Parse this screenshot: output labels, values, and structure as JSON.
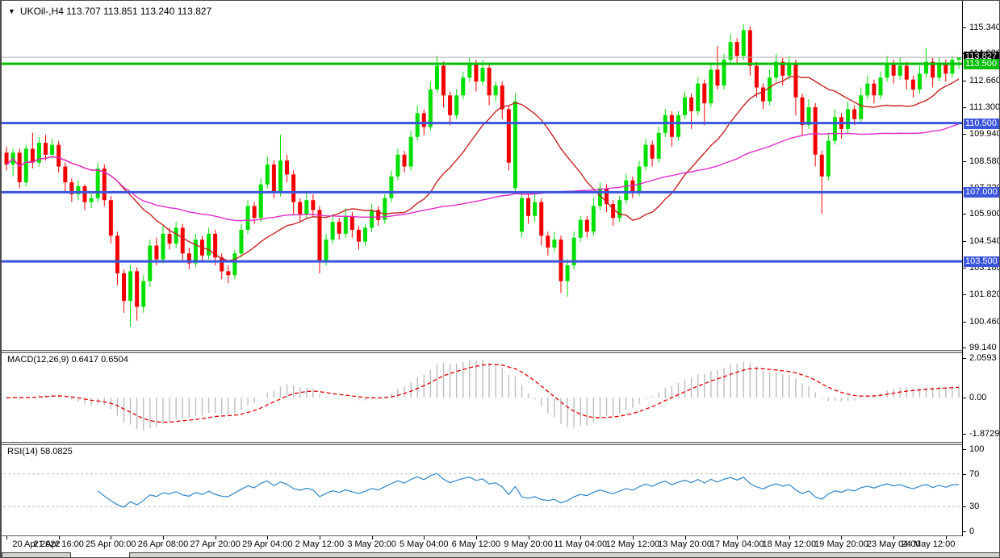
{
  "window": {
    "dropdown_icon": "▼",
    "title": "UKOil-,H4 113.707 113.851 113.240 113.827"
  },
  "chart_data": {
    "type": "candlestick",
    "symbol": "UKOil-",
    "timeframe": "H4",
    "current_bar": {
      "open": 113.707,
      "high": 113.851,
      "low": 113.24,
      "close": 113.827
    },
    "colors": {
      "bull": "#00DF00",
      "bear": "#F30000",
      "ma_fast": "#C62222",
      "ma_slow": "#E02CC8",
      "level_blue": "#3C55DD",
      "level_green": "#00BE00",
      "price_line": "#ABABAB",
      "badge_black": "#000000",
      "macd_hist": "#BDBDBD",
      "macd_signal": "#E00000",
      "rsi_line": "#2E86C8"
    },
    "price_axis_labels": [
      "115.340",
      "114.020",
      "112.660",
      "111.300",
      "109.940",
      "108.580",
      "107.220",
      "105.900",
      "104.540",
      "103.180",
      "101.820",
      "100.460",
      "99.140"
    ],
    "horizontal_levels": [
      {
        "value": 113.5,
        "label": "113.500",
        "color": "#00BE00"
      },
      {
        "value": 110.5,
        "label": "110.500",
        "color": "#3C55DD"
      },
      {
        "value": 107.0,
        "label": "107.000",
        "color": "#3C55DD"
      },
      {
        "value": 103.5,
        "label": "103.500",
        "color": "#3C55DD"
      }
    ],
    "price_line": {
      "value": 113.827,
      "label": "113.827"
    },
    "moving_averages": [
      {
        "name": "fast",
        "period": 18,
        "color": "#C62222"
      },
      {
        "name": "slow",
        "period": 65,
        "color": "#E02CC8"
      }
    ],
    "time_axis_labels": [
      "20 Apr 2022",
      "21 Apr 16:00",
      "25 Apr 00:00",
      "26 Apr 08:00",
      "27 Apr 20:00",
      "29 Apr 04:00",
      "2 May 12:00",
      "3 May 20:00",
      "5 May 04:00",
      "6 May 12:00",
      "9 May 20:00",
      "11 May 04:00",
      "12 May 12:00",
      "13 May 20:00",
      "17 May 04:00",
      "18 May 12:00",
      "19 May 20:00",
      "23 May 04:00",
      "24 May 12:00"
    ],
    "time_label_bar_step": 8,
    "candles": [
      [
        109.0,
        109.3,
        108.1,
        108.4
      ],
      [
        108.4,
        109.2,
        107.8,
        109.0
      ],
      [
        109.0,
        109.2,
        107.2,
        107.5
      ],
      [
        107.5,
        109.4,
        107.3,
        109.2
      ],
      [
        109.2,
        110.0,
        108.2,
        108.5
      ],
      [
        108.5,
        109.8,
        108.3,
        109.5
      ],
      [
        109.5,
        109.9,
        108.6,
        108.9
      ],
      [
        108.9,
        109.7,
        108.7,
        109.4
      ],
      [
        109.4,
        109.6,
        108.0,
        108.3
      ],
      [
        108.3,
        108.5,
        107.0,
        107.5
      ],
      [
        107.5,
        107.7,
        106.5,
        106.9
      ],
      [
        106.9,
        107.6,
        106.6,
        107.3
      ],
      [
        107.3,
        107.4,
        106.1,
        106.5
      ],
      [
        106.5,
        107.0,
        106.2,
        106.7
      ],
      [
        106.7,
        108.5,
        106.5,
        108.2
      ],
      [
        108.2,
        108.4,
        106.3,
        106.6
      ],
      [
        106.6,
        106.8,
        104.4,
        104.8
      ],
      [
        104.8,
        105.0,
        102.3,
        102.9
      ],
      [
        102.9,
        103.1,
        100.9,
        101.5
      ],
      [
        101.5,
        103.3,
        100.2,
        103.0
      ],
      [
        103.0,
        103.2,
        100.5,
        101.2
      ],
      [
        101.2,
        102.8,
        100.9,
        102.5
      ],
      [
        102.5,
        104.6,
        102.2,
        104.3
      ],
      [
        104.3,
        104.7,
        103.3,
        103.6
      ],
      [
        103.6,
        105.3,
        103.4,
        104.9
      ],
      [
        104.9,
        105.2,
        104.1,
        104.4
      ],
      [
        104.4,
        105.5,
        104.2,
        105.2
      ],
      [
        105.2,
        105.4,
        103.5,
        103.9
      ],
      [
        103.9,
        104.2,
        103.1,
        103.4
      ],
      [
        103.4,
        104.9,
        103.2,
        104.6
      ],
      [
        104.6,
        104.8,
        103.5,
        103.8
      ],
      [
        103.8,
        105.2,
        103.6,
        104.9
      ],
      [
        104.9,
        105.1,
        103.3,
        103.7
      ],
      [
        103.7,
        103.9,
        102.6,
        103.0
      ],
      [
        103.0,
        103.3,
        102.4,
        102.8
      ],
      [
        102.8,
        104.1,
        102.6,
        103.9
      ],
      [
        103.9,
        105.4,
        103.7,
        105.1
      ],
      [
        105.1,
        106.6,
        104.9,
        106.3
      ],
      [
        106.3,
        106.5,
        105.4,
        105.7
      ],
      [
        105.7,
        107.7,
        105.5,
        107.4
      ],
      [
        107.4,
        108.8,
        107.2,
        108.4
      ],
      [
        108.4,
        108.6,
        106.7,
        107.0
      ],
      [
        107.0,
        109.9,
        106.8,
        108.6
      ],
      [
        108.6,
        108.9,
        107.5,
        107.9
      ],
      [
        107.9,
        108.1,
        105.9,
        106.5
      ],
      [
        106.5,
        106.7,
        105.5,
        105.9
      ],
      [
        105.9,
        107.0,
        105.7,
        106.6
      ],
      [
        106.6,
        106.9,
        105.8,
        106.1
      ],
      [
        106.1,
        106.3,
        102.9,
        103.5
      ],
      [
        103.5,
        104.9,
        103.3,
        104.6
      ],
      [
        104.6,
        105.9,
        104.4,
        105.5
      ],
      [
        105.5,
        105.7,
        104.6,
        104.9
      ],
      [
        104.9,
        106.2,
        104.7,
        105.8
      ],
      [
        105.8,
        106.0,
        104.7,
        105.1
      ],
      [
        105.1,
        105.3,
        104.1,
        104.5
      ],
      [
        104.5,
        105.4,
        104.3,
        105.2
      ],
      [
        105.2,
        106.4,
        105.0,
        106.1
      ],
      [
        106.1,
        106.3,
        105.3,
        105.6
      ],
      [
        105.6,
        106.9,
        105.4,
        106.7
      ],
      [
        106.7,
        108.1,
        106.5,
        107.8
      ],
      [
        107.8,
        109.2,
        107.6,
        108.9
      ],
      [
        108.9,
        109.1,
        108.0,
        108.3
      ],
      [
        108.3,
        110.1,
        108.1,
        109.8
      ],
      [
        109.8,
        111.4,
        109.6,
        111.0
      ],
      [
        111.0,
        111.2,
        109.9,
        110.3
      ],
      [
        110.3,
        112.6,
        110.1,
        112.2
      ],
      [
        112.2,
        113.9,
        112.0,
        113.4
      ],
      [
        113.4,
        113.6,
        111.3,
        111.9
      ],
      [
        111.9,
        112.1,
        110.4,
        110.9
      ],
      [
        110.9,
        112.2,
        110.7,
        111.9
      ],
      [
        111.9,
        113.1,
        111.7,
        112.8
      ],
      [
        112.8,
        113.8,
        112.6,
        113.5
      ],
      [
        113.5,
        113.7,
        112.1,
        112.6
      ],
      [
        112.6,
        113.7,
        112.4,
        113.3
      ],
      [
        113.3,
        113.5,
        111.4,
        111.9
      ],
      [
        111.9,
        112.6,
        111.6,
        112.4
      ],
      [
        112.4,
        112.6,
        110.7,
        111.2
      ],
      [
        111.2,
        111.4,
        108.1,
        108.5
      ],
      [
        107.2,
        112.0,
        106.9,
        111.6
      ],
      [
        105.0,
        107.0,
        104.7,
        106.7
      ],
      [
        106.7,
        107.0,
        105.4,
        105.8
      ],
      [
        105.8,
        106.9,
        105.5,
        106.5
      ],
      [
        106.5,
        106.7,
        104.3,
        104.8
      ],
      [
        104.8,
        105.0,
        103.8,
        104.2
      ],
      [
        104.2,
        105.0,
        104.0,
        104.6
      ],
      [
        104.6,
        104.8,
        101.9,
        102.5
      ],
      [
        102.5,
        103.6,
        101.7,
        103.3
      ],
      [
        103.3,
        105.0,
        103.1,
        104.7
      ],
      [
        104.7,
        105.8,
        104.5,
        105.6
      ],
      [
        105.6,
        105.8,
        104.7,
        105.0
      ],
      [
        105.0,
        106.7,
        104.8,
        106.3
      ],
      [
        106.3,
        107.5,
        106.1,
        107.2
      ],
      [
        107.2,
        107.4,
        106.0,
        106.4
      ],
      [
        106.4,
        106.6,
        105.3,
        105.7
      ],
      [
        105.7,
        106.8,
        105.5,
        106.6
      ],
      [
        106.6,
        107.9,
        106.4,
        107.6
      ],
      [
        107.6,
        107.8,
        106.7,
        107.0
      ],
      [
        107.0,
        108.6,
        106.8,
        108.3
      ],
      [
        108.3,
        109.7,
        108.1,
        109.4
      ],
      [
        109.4,
        109.6,
        108.3,
        108.7
      ],
      [
        108.7,
        110.3,
        108.5,
        110.0
      ],
      [
        110.0,
        111.2,
        109.8,
        110.9
      ],
      [
        110.9,
        111.1,
        109.3,
        109.8
      ],
      [
        109.8,
        111.1,
        109.6,
        110.9
      ],
      [
        110.9,
        112.1,
        110.7,
        111.8
      ],
      [
        111.8,
        112.0,
        110.2,
        111.1
      ],
      [
        111.1,
        112.8,
        110.9,
        112.5
      ],
      [
        112.5,
        112.7,
        110.4,
        111.5
      ],
      [
        111.5,
        113.5,
        111.3,
        113.2
      ],
      [
        113.2,
        114.4,
        112.2,
        112.4
      ],
      [
        112.4,
        114.0,
        112.2,
        113.7
      ],
      [
        113.7,
        115.0,
        113.5,
        114.6
      ],
      [
        114.6,
        114.8,
        113.5,
        113.9
      ],
      [
        113.9,
        115.5,
        113.7,
        115.2
      ],
      [
        115.2,
        115.4,
        112.9,
        113.4
      ],
      [
        113.4,
        113.6,
        111.8,
        112.3
      ],
      [
        112.3,
        112.5,
        111.2,
        111.6
      ],
      [
        111.6,
        113.2,
        111.4,
        112.8
      ],
      [
        112.8,
        114.0,
        112.6,
        113.6
      ],
      [
        113.6,
        113.8,
        112.4,
        112.9
      ],
      [
        112.9,
        113.9,
        112.7,
        113.5
      ],
      [
        113.5,
        113.7,
        110.9,
        111.8
      ],
      [
        111.8,
        112.0,
        109.9,
        110.4
      ],
      [
        110.4,
        111.7,
        110.2,
        111.3
      ],
      [
        111.3,
        111.5,
        108.3,
        108.9
      ],
      [
        108.9,
        109.1,
        105.9,
        107.8
      ],
      [
        107.8,
        110.0,
        107.6,
        109.6
      ],
      [
        109.6,
        111.2,
        109.4,
        110.8
      ],
      [
        110.8,
        111.0,
        109.7,
        110.2
      ],
      [
        110.2,
        111.6,
        110.0,
        111.2
      ],
      [
        111.2,
        111.4,
        110.4,
        110.7
      ],
      [
        110.7,
        112.3,
        110.5,
        111.9
      ],
      [
        111.9,
        112.9,
        111.7,
        112.5
      ],
      [
        112.5,
        112.7,
        111.5,
        111.9
      ],
      [
        111.9,
        113.1,
        111.7,
        112.8
      ],
      [
        112.8,
        113.9,
        112.6,
        113.5
      ],
      [
        113.5,
        113.7,
        112.5,
        112.9
      ],
      [
        112.9,
        113.8,
        112.7,
        113.4
      ],
      [
        113.4,
        113.6,
        112.2,
        112.7
      ],
      [
        112.7,
        112.9,
        111.8,
        112.2
      ],
      [
        112.2,
        113.4,
        112.0,
        113.0
      ],
      [
        113.0,
        114.3,
        112.8,
        113.6
      ],
      [
        113.6,
        113.8,
        112.3,
        112.8
      ],
      [
        112.8,
        113.8,
        112.6,
        113.5
      ],
      [
        113.5,
        113.7,
        112.6,
        113.0
      ],
      [
        113.0,
        113.9,
        112.8,
        113.7
      ],
      [
        113.707,
        113.851,
        113.24,
        113.827
      ]
    ],
    "macd": {
      "label": "MACD(12,26,9) 0.6417 0.6504",
      "params": [
        12,
        26,
        9
      ],
      "main_value": 0.6417,
      "signal_value": 0.6504,
      "axis_labels": [
        "2.0593",
        "0.00",
        "-1.8729"
      ]
    },
    "rsi": {
      "label": "RSI(14) 58.0825",
      "period": 14,
      "value": 58.0825,
      "axis_labels": [
        "100",
        "70",
        "30",
        "0"
      ],
      "levels": [
        70,
        30
      ]
    }
  }
}
